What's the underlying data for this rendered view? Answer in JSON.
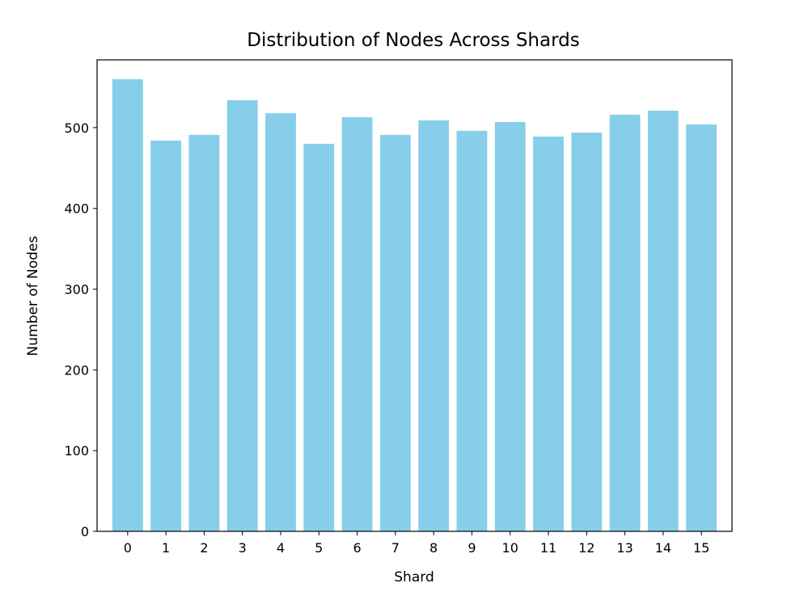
{
  "chart_data": {
    "type": "bar",
    "title": "Distribution of Nodes Across Shards",
    "xlabel": "Shard",
    "ylabel": "Number of Nodes",
    "categories": [
      "0",
      "1",
      "2",
      "3",
      "4",
      "5",
      "6",
      "7",
      "8",
      "9",
      "10",
      "11",
      "12",
      "13",
      "14",
      "15"
    ],
    "values": [
      560,
      484,
      491,
      534,
      518,
      480,
      513,
      491,
      509,
      496,
      507,
      489,
      494,
      516,
      521,
      504
    ],
    "ylim": [
      0,
      584
    ],
    "yticks": [
      0,
      100,
      200,
      300,
      400,
      500
    ],
    "grid": false,
    "legend": null,
    "colors": {
      "bar": "#87ceeb",
      "axes": "#000000",
      "background": "#ffffff"
    }
  }
}
